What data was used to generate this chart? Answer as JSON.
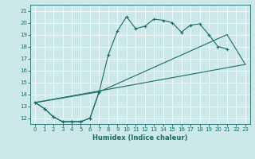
{
  "xlabel": "Humidex (Indice chaleur)",
  "bg_color": "#cce8e8",
  "grid_color": "#b8d8d8",
  "line_color": "#1a6b6b",
  "xlim": [
    -0.5,
    23.5
  ],
  "ylim": [
    11.5,
    21.5
  ],
  "yticks": [
    12,
    13,
    14,
    15,
    16,
    17,
    18,
    19,
    20,
    21
  ],
  "xticks": [
    0,
    1,
    2,
    3,
    4,
    5,
    6,
    7,
    8,
    9,
    10,
    11,
    12,
    13,
    14,
    15,
    16,
    17,
    18,
    19,
    20,
    21,
    22,
    23
  ],
  "line1_x": [
    0,
    1,
    2,
    3,
    4,
    5,
    6,
    7,
    8,
    9,
    10,
    11,
    12,
    13,
    14,
    15,
    16,
    17,
    18,
    19,
    20,
    21
  ],
  "line1_y": [
    13.3,
    12.8,
    12.1,
    11.7,
    11.7,
    11.7,
    12.0,
    14.2,
    17.3,
    19.3,
    20.5,
    19.5,
    19.7,
    20.3,
    20.2,
    20.0,
    19.2,
    19.8,
    19.9,
    19.0,
    18.0,
    17.8
  ],
  "line2_x": [
    0,
    1,
    2,
    3,
    4,
    5,
    6,
    7
  ],
  "line2_y": [
    13.3,
    12.8,
    12.1,
    11.7,
    11.7,
    11.7,
    12.0,
    14.2
  ],
  "line3_x": [
    0,
    7,
    21,
    23
  ],
  "line3_y": [
    13.3,
    14.2,
    19.0,
    16.5
  ],
  "line4_x": [
    0,
    23
  ],
  "line4_y": [
    13.3,
    16.5
  ]
}
